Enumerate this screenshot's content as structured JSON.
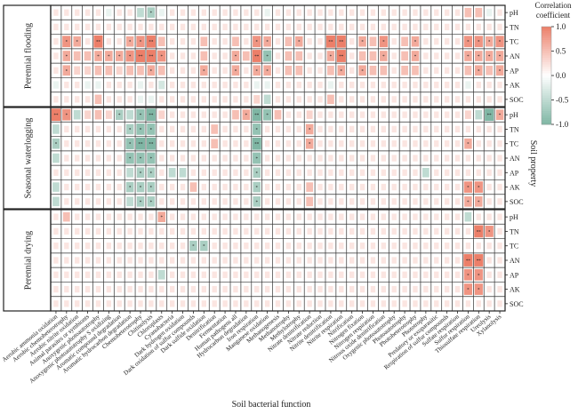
{
  "chart_data": {
    "type": "heatmap",
    "title": "",
    "xlabel": "Soil bacterial function",
    "ylabel": "Soil property",
    "panels": [
      {
        "name": "Perennial flooding"
      },
      {
        "name": "Seasonal waterlogging"
      },
      {
        "name": "Perennial drying"
      }
    ],
    "rows": [
      "pH",
      "TN",
      "TC",
      "AN",
      "AP",
      "AK",
      "SOC"
    ],
    "columns": [
      "Aerobic ammonia oxidation",
      "Aerobic chemoheterotrophy",
      "Aerobic nitrite oxidation",
      "Animal parasites or symbionts",
      "Anoxygenic photoautotrophy",
      "Anoxygenic photoautotrophy S oxidizing",
      "Aromatic compound degradation",
      "Aromatic hydrocarbon degradation",
      "Chemoheterotrophy",
      "Chitinolysis",
      "Chloroplasts",
      "Cyanobacteria",
      "Dark hydrogen oxidation",
      "Dark oxidation of sulfur compounds",
      "Dark sulfide oxidation",
      "Denitrification",
      "Fermentation",
      "Human pathogens all",
      "Hydrocarbon degradation",
      "Iron respiration",
      "Manganese oxidation",
      "Methanogenesis",
      "Methanotrophy",
      "Methylotrophy",
      "Nitrate denitrification",
      "Nitrate reduction",
      "Nitrite denitrification",
      "Nitrite respiration",
      "Nitrification",
      "Nitrogen fixation",
      "Nitrogen respiration",
      "Nitrous oxide denitrification",
      "Oxygenic photoautotrophy",
      "Photoautotrophy",
      "Photoheterotrophy",
      "Phototrophy",
      "Predatory or exoparasitic",
      "Respiration of sulfur compounds",
      "Sulfate respiration",
      "Sulfur respiration",
      "Thiosulfate respiration",
      "Ureolysis",
      "Xylanolysis"
    ],
    "values": [
      [
        [
          0.0,
          0.0,
          0.0,
          0.0,
          0.0,
          -0.1,
          0.0,
          0.0,
          -0.3,
          -0.4,
          -0.1,
          0.0,
          0.0,
          0.0,
          0.0,
          0.0,
          0.0,
          0.0,
          0.0,
          0.0,
          -0.1,
          0.0,
          0.0,
          0.0,
          0.0,
          0.0,
          0.0,
          0.0,
          0.0,
          0.0,
          0.0,
          0.0,
          0.0,
          0.0,
          0.0,
          0.0,
          0.0,
          0.0,
          0.0,
          0.3,
          0.3,
          -0.1,
          0.0
        ],
        [
          0.0,
          0.0,
          0.0,
          0.0,
          0.0,
          0.0,
          0.0,
          0.0,
          0.0,
          0.0,
          0.0,
          0.0,
          0.0,
          0.0,
          0.0,
          0.0,
          0.0,
          0.0,
          0.0,
          0.0,
          0.0,
          0.0,
          0.0,
          0.0,
          0.0,
          0.0,
          0.0,
          0.0,
          0.0,
          0.0,
          0.0,
          0.0,
          0.0,
          0.0,
          0.0,
          0.0,
          0.0,
          0.0,
          0.0,
          0.0,
          0.0,
          0.0,
          0.0
        ],
        [
          0.0,
          0.5,
          0.4,
          0.0,
          0.6,
          0.0,
          0.0,
          0.4,
          0.5,
          0.6,
          0.3,
          0.0,
          0.0,
          0.0,
          0.3,
          0.0,
          0.0,
          0.3,
          0.0,
          0.5,
          0.4,
          0.0,
          0.3,
          0.4,
          0.0,
          0.0,
          0.6,
          0.6,
          0.0,
          0.4,
          0.3,
          0.5,
          0.0,
          0.3,
          0.4,
          0.0,
          0.0,
          0.0,
          0.0,
          0.5,
          0.5,
          0.4,
          0.5
        ],
        [
          0.0,
          0.4,
          0.3,
          0.3,
          0.4,
          0.4,
          0.4,
          0.5,
          0.6,
          0.6,
          0.5,
          0.0,
          0.0,
          0.0,
          0.3,
          0.0,
          0.0,
          0.4,
          0.3,
          0.6,
          -0.5,
          0.0,
          0.3,
          0.3,
          0.0,
          0.0,
          0.4,
          0.6,
          0.0,
          0.3,
          0.3,
          0.4,
          0.0,
          0.3,
          0.4,
          0.0,
          0.0,
          0.0,
          0.0,
          0.4,
          0.4,
          0.4,
          0.4
        ],
        [
          0.0,
          0.4,
          0.2,
          0.2,
          0.3,
          0.3,
          0.2,
          0.3,
          0.3,
          0.4,
          0.3,
          0.0,
          0.0,
          0.0,
          0.4,
          0.0,
          0.0,
          0.4,
          0.0,
          0.4,
          0.4,
          0.0,
          0.3,
          0.3,
          0.0,
          0.0,
          0.3,
          0.4,
          0.0,
          0.4,
          0.3,
          0.3,
          0.0,
          0.3,
          0.3,
          0.0,
          0.0,
          0.0,
          0.0,
          0.3,
          0.4,
          0.3,
          0.4
        ],
        [
          -0.1,
          0.0,
          0.0,
          -0.1,
          -0.1,
          0.0,
          0.0,
          0.0,
          -0.1,
          0.0,
          -0.2,
          0.0,
          0.0,
          0.0,
          0.0,
          0.0,
          0.0,
          0.0,
          0.0,
          -0.1,
          -0.1,
          0.0,
          0.0,
          0.0,
          0.0,
          0.0,
          -0.1,
          0.0,
          0.0,
          0.0,
          0.0,
          0.0,
          0.0,
          0.0,
          0.0,
          0.0,
          0.0,
          0.0,
          0.0,
          -0.1,
          0.0,
          0.0,
          0.0
        ],
        [
          0.0,
          0.0,
          0.0,
          0.0,
          0.3,
          0.0,
          0.0,
          0.0,
          -0.1,
          -0.1,
          0.0,
          0.0,
          0.0,
          0.0,
          0.0,
          0.0,
          0.0,
          0.0,
          0.0,
          0.2,
          -0.3,
          0.0,
          0.0,
          0.0,
          0.0,
          0.0,
          0.3,
          0.0,
          0.0,
          0.0,
          0.0,
          0.0,
          0.0,
          0.0,
          0.0,
          0.0,
          0.0,
          0.0,
          0.0,
          0.0,
          0.0,
          0.0,
          0.0
        ]
      ],
      [
        [
          0.6,
          0.5,
          -0.3,
          0.2,
          0.3,
          0.2,
          -0.4,
          -0.3,
          -0.5,
          -0.6,
          0.2,
          0.0,
          0.0,
          0.0,
          0.0,
          0.0,
          0.0,
          0.3,
          0.4,
          -0.6,
          -0.5,
          0.3,
          0.0,
          0.0,
          0.2,
          0.0,
          0.0,
          0.0,
          0.0,
          0.0,
          0.0,
          0.0,
          0.0,
          0.0,
          0.0,
          0.0,
          0.0,
          0.0,
          0.0,
          0.2,
          -0.3,
          -0.6,
          0.4
        ],
        [
          -0.3,
          0.0,
          0.0,
          0.0,
          0.0,
          0.0,
          0.0,
          -0.4,
          -0.5,
          -0.5,
          0.0,
          0.0,
          0.0,
          0.0,
          0.0,
          0.3,
          0.0,
          0.0,
          0.0,
          -0.5,
          0.0,
          0.0,
          0.0,
          0.0,
          0.4,
          0.0,
          0.0,
          0.0,
          0.0,
          0.0,
          0.0,
          0.0,
          0.0,
          0.0,
          0.0,
          0.0,
          0.0,
          0.0,
          0.0,
          0.0,
          0.0,
          0.0,
          0.0
        ],
        [
          -0.4,
          0.0,
          0.0,
          0.0,
          0.0,
          0.0,
          0.0,
          -0.5,
          -0.6,
          -0.6,
          0.0,
          0.0,
          0.0,
          0.0,
          0.0,
          0.3,
          0.0,
          0.0,
          0.0,
          -0.6,
          0.0,
          0.0,
          0.0,
          0.0,
          0.4,
          0.0,
          0.0,
          0.0,
          0.0,
          0.0,
          0.0,
          0.0,
          0.0,
          0.0,
          0.0,
          0.0,
          0.0,
          0.0,
          0.0,
          0.4,
          0.0,
          0.0,
          0.0
        ],
        [
          -0.3,
          0.0,
          0.0,
          0.0,
          0.0,
          0.0,
          0.0,
          -0.5,
          -0.5,
          -0.5,
          0.0,
          0.0,
          0.0,
          0.0,
          0.0,
          0.0,
          0.0,
          0.0,
          0.0,
          -0.5,
          0.0,
          0.0,
          0.0,
          0.0,
          0.0,
          0.0,
          0.0,
          0.0,
          0.0,
          0.0,
          0.0,
          0.0,
          0.0,
          0.0,
          0.0,
          0.0,
          0.0,
          0.0,
          0.0,
          0.0,
          0.0,
          0.0,
          0.0
        ],
        [
          0.0,
          0.0,
          0.0,
          0.0,
          0.0,
          0.0,
          0.0,
          -0.3,
          -0.4,
          -0.4,
          0.0,
          -0.3,
          -0.3,
          0.0,
          0.0,
          0.0,
          0.0,
          0.0,
          0.0,
          -0.4,
          0.0,
          0.0,
          0.0,
          0.0,
          0.0,
          0.0,
          0.0,
          0.0,
          0.0,
          0.0,
          0.0,
          0.0,
          0.0,
          0.0,
          0.0,
          -0.3,
          0.0,
          0.0,
          0.0,
          0.0,
          0.0,
          0.0,
          0.0
        ],
        [
          -0.3,
          0.0,
          0.0,
          0.0,
          0.0,
          0.0,
          0.0,
          -0.4,
          -0.4,
          -0.4,
          0.0,
          0.0,
          0.0,
          0.3,
          0.0,
          0.0,
          0.0,
          0.0,
          0.0,
          -0.4,
          0.0,
          0.0,
          0.0,
          0.0,
          0.3,
          0.0,
          0.0,
          0.0,
          0.0,
          0.0,
          0.0,
          0.0,
          0.0,
          0.0,
          0.0,
          0.0,
          0.0,
          0.0,
          0.0,
          0.5,
          0.5,
          0.0,
          0.0
        ],
        [
          -0.3,
          0.0,
          0.0,
          0.0,
          0.0,
          0.0,
          0.0,
          -0.3,
          -0.4,
          -0.4,
          0.0,
          0.0,
          0.0,
          0.0,
          0.0,
          0.0,
          0.0,
          0.0,
          0.0,
          -0.4,
          0.0,
          0.0,
          0.0,
          0.0,
          0.3,
          0.0,
          0.0,
          0.0,
          0.0,
          0.0,
          0.0,
          0.0,
          0.0,
          0.0,
          0.0,
          0.0,
          0.0,
          0.0,
          0.0,
          0.4,
          0.4,
          0.0,
          0.0
        ]
      ],
      [
        [
          0.0,
          0.3,
          0.0,
          0.0,
          0.0,
          0.0,
          0.0,
          0.0,
          0.0,
          0.0,
          0.4,
          0.0,
          0.0,
          0.0,
          0.0,
          0.0,
          0.0,
          0.0,
          0.0,
          0.0,
          0.0,
          0.0,
          0.0,
          0.0,
          0.0,
          0.0,
          0.0,
          0.0,
          0.0,
          0.0,
          0.0,
          0.0,
          0.0,
          0.0,
          0.0,
          0.0,
          0.0,
          0.0,
          0.0,
          -0.3,
          0.0,
          0.0,
          0.0
        ],
        [
          0.0,
          0.0,
          0.0,
          0.0,
          0.0,
          0.0,
          0.0,
          0.0,
          0.0,
          0.0,
          0.0,
          0.0,
          0.0,
          0.0,
          0.0,
          0.0,
          0.0,
          0.0,
          0.0,
          0.0,
          0.0,
          0.0,
          0.0,
          0.0,
          0.0,
          0.0,
          0.0,
          0.0,
          0.0,
          0.0,
          0.0,
          0.0,
          0.0,
          0.0,
          0.0,
          0.0,
          0.0,
          0.0,
          0.0,
          0.0,
          0.6,
          0.5,
          0.0
        ],
        [
          0.0,
          0.0,
          0.0,
          0.0,
          0.0,
          0.0,
          0.0,
          0.0,
          0.0,
          0.0,
          0.0,
          0.0,
          0.0,
          -0.4,
          -0.4,
          0.0,
          0.0,
          0.0,
          0.0,
          0.0,
          0.0,
          0.0,
          0.0,
          0.0,
          0.0,
          0.0,
          0.0,
          0.0,
          0.0,
          0.0,
          0.0,
          0.0,
          0.0,
          0.0,
          0.0,
          0.0,
          0.0,
          0.0,
          0.0,
          0.0,
          0.0,
          0.0,
          0.0
        ],
        [
          0.0,
          0.0,
          0.0,
          0.0,
          0.0,
          0.0,
          0.0,
          0.0,
          0.0,
          0.0,
          0.0,
          0.0,
          0.0,
          0.0,
          0.0,
          0.0,
          0.0,
          0.0,
          0.0,
          0.0,
          0.0,
          0.0,
          0.0,
          0.0,
          0.0,
          0.0,
          0.0,
          0.0,
          0.0,
          0.0,
          0.0,
          0.0,
          0.0,
          0.0,
          0.0,
          0.0,
          0.0,
          0.0,
          0.0,
          0.6,
          0.6,
          0.0,
          0.0
        ],
        [
          0.0,
          0.0,
          0.0,
          0.0,
          0.0,
          0.0,
          0.0,
          0.0,
          0.0,
          0.0,
          -0.3,
          0.0,
          0.0,
          0.0,
          0.0,
          0.0,
          0.0,
          0.0,
          0.0,
          0.0,
          0.0,
          0.0,
          0.0,
          0.0,
          0.0,
          0.0,
          0.0,
          0.0,
          0.0,
          0.0,
          0.0,
          0.0,
          0.0,
          0.0,
          0.0,
          0.0,
          0.0,
          0.0,
          0.0,
          0.5,
          0.5,
          0.0,
          0.0
        ],
        [
          0.0,
          0.0,
          0.0,
          0.0,
          0.0,
          0.0,
          0.0,
          0.0,
          0.0,
          0.0,
          0.0,
          0.0,
          0.0,
          0.0,
          0.0,
          0.0,
          0.0,
          0.0,
          0.0,
          0.0,
          0.0,
          0.0,
          0.0,
          0.0,
          0.0,
          0.0,
          0.0,
          0.0,
          0.0,
          0.0,
          0.0,
          0.0,
          0.0,
          0.0,
          0.0,
          0.0,
          0.0,
          0.0,
          0.0,
          0.5,
          0.5,
          0.0,
          0.0
        ],
        [
          0.0,
          0.0,
          0.0,
          0.0,
          0.0,
          0.0,
          0.0,
          0.0,
          0.0,
          0.0,
          0.0,
          0.0,
          0.0,
          0.0,
          0.0,
          0.0,
          0.0,
          0.0,
          0.0,
          0.0,
          0.0,
          0.0,
          0.0,
          0.0,
          0.0,
          0.0,
          0.0,
          0.0,
          0.0,
          0.0,
          0.0,
          0.0,
          0.0,
          0.0,
          0.0,
          0.0,
          0.0,
          0.0,
          0.0,
          0.0,
          0.0,
          0.0,
          0.0
        ]
      ]
    ],
    "colorbar": {
      "title": "Correlation coefficient",
      "ticks": [
        "1.0",
        "0.5",
        "0.0",
        "-0.5",
        "-1.0"
      ],
      "range": [
        -1.0,
        1.0
      ],
      "colors": {
        "positive": "#ec7f69",
        "zero": "#ffffff",
        "negative": "#7fb6a4"
      }
    },
    "legend_position": "top-right",
    "grid": true
  }
}
